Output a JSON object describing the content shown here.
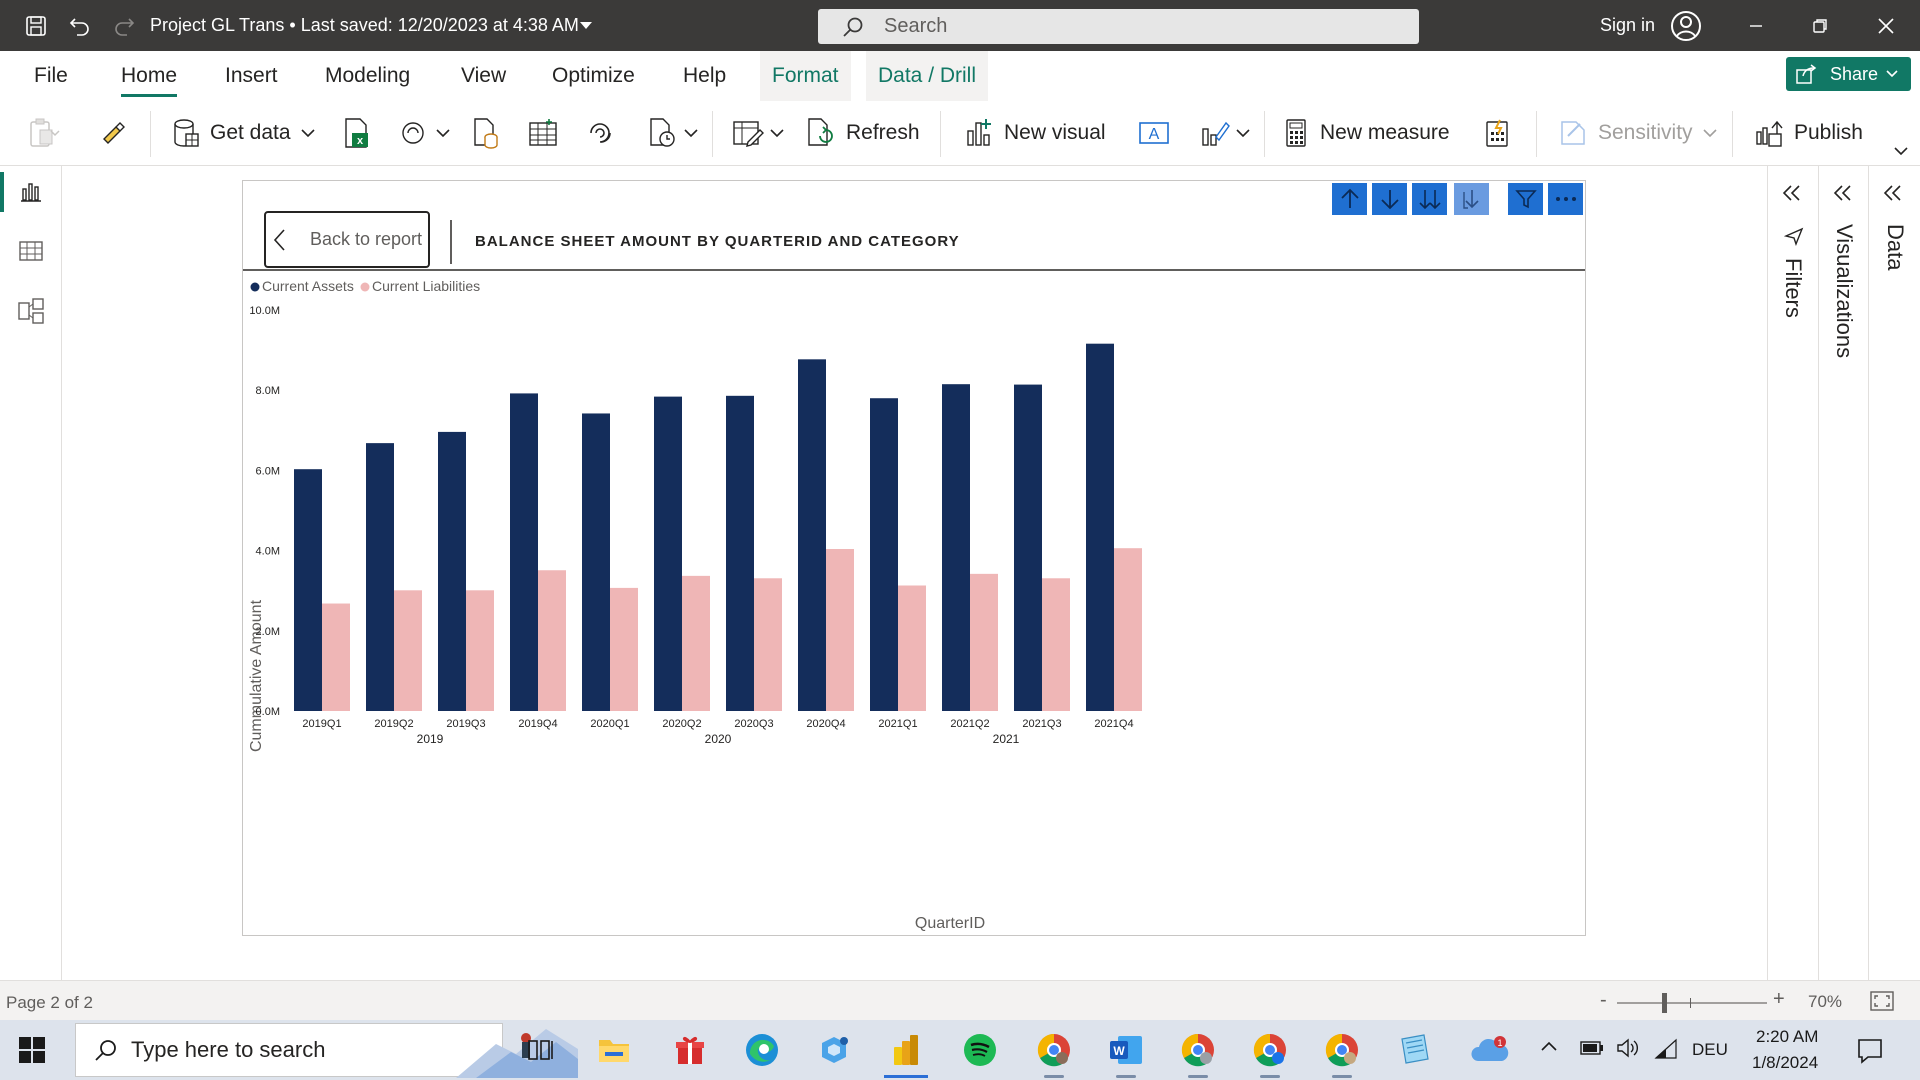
{
  "window": {
    "title": "Project GL Trans • Last saved: 12/20/2023 at 4:38 AM",
    "search_placeholder": "Search",
    "sign_in": "Sign in"
  },
  "menu": {
    "tabs": [
      "File",
      "Home",
      "Insert",
      "Modeling",
      "View",
      "Optimize",
      "Help",
      "Format",
      "Data / Drill"
    ],
    "active": "Home",
    "share_label": "Share"
  },
  "ribbon": {
    "get_data": "Get data",
    "refresh": "Refresh",
    "new_visual": "New visual",
    "new_measure": "New measure",
    "sensitivity": "Sensitivity",
    "publish": "Publish"
  },
  "visual": {
    "back_label": "Back to report",
    "title": "BALANCE SHEET AMOUNT BY QUARTERID AND CATEGORY"
  },
  "chart_data": {
    "type": "bar",
    "title": "BALANCE SHEET AMOUNT BY QUARTERID AND CATEGORY",
    "xlabel": "QuarterID",
    "ylabel": "Cummulative Amount",
    "legend": "top-left",
    "ylim": [
      0,
      10000000
    ],
    "yticks": [
      "0.0M",
      "2.0M",
      "4.0M",
      "6.0M",
      "8.0M",
      "10.0M"
    ],
    "categories": [
      "2019Q1",
      "2019Q2",
      "2019Q3",
      "2019Q4",
      "2020Q1",
      "2020Q2",
      "2020Q3",
      "2020Q4",
      "2021Q1",
      "2021Q2",
      "2021Q3",
      "2021Q4"
    ],
    "year_groups": [
      "2019",
      "2020",
      "2021"
    ],
    "series": [
      {
        "name": "Current Assets",
        "color": "#142d5b",
        "values": [
          6030000,
          6680000,
          6960000,
          7920000,
          7420000,
          7840000,
          7860000,
          8770000,
          7800000,
          8150000,
          8140000,
          9160000
        ]
      },
      {
        "name": "Current Liabilities",
        "color": "#efb6b6",
        "values": [
          2680000,
          3010000,
          3010000,
          3510000,
          3070000,
          3370000,
          3310000,
          4040000,
          3130000,
          3420000,
          3310000,
          4060000
        ]
      }
    ]
  },
  "panes": {
    "filters": "Filters",
    "visualizations": "Visualizations",
    "data": "Data"
  },
  "status": {
    "page": "Page 2 of 2",
    "zoom_minus": "-",
    "zoom_plus": "+",
    "zoom": "70%"
  },
  "taskbar": {
    "search_placeholder": "Type here to search",
    "language": "DEU",
    "time": "2:20 AM",
    "date": "1/8/2024",
    "notification_count": "1"
  },
  "colors": {
    "title_bar": "#3b3a39",
    "accent": "#117865",
    "drill_button": "#1f6fd1"
  }
}
